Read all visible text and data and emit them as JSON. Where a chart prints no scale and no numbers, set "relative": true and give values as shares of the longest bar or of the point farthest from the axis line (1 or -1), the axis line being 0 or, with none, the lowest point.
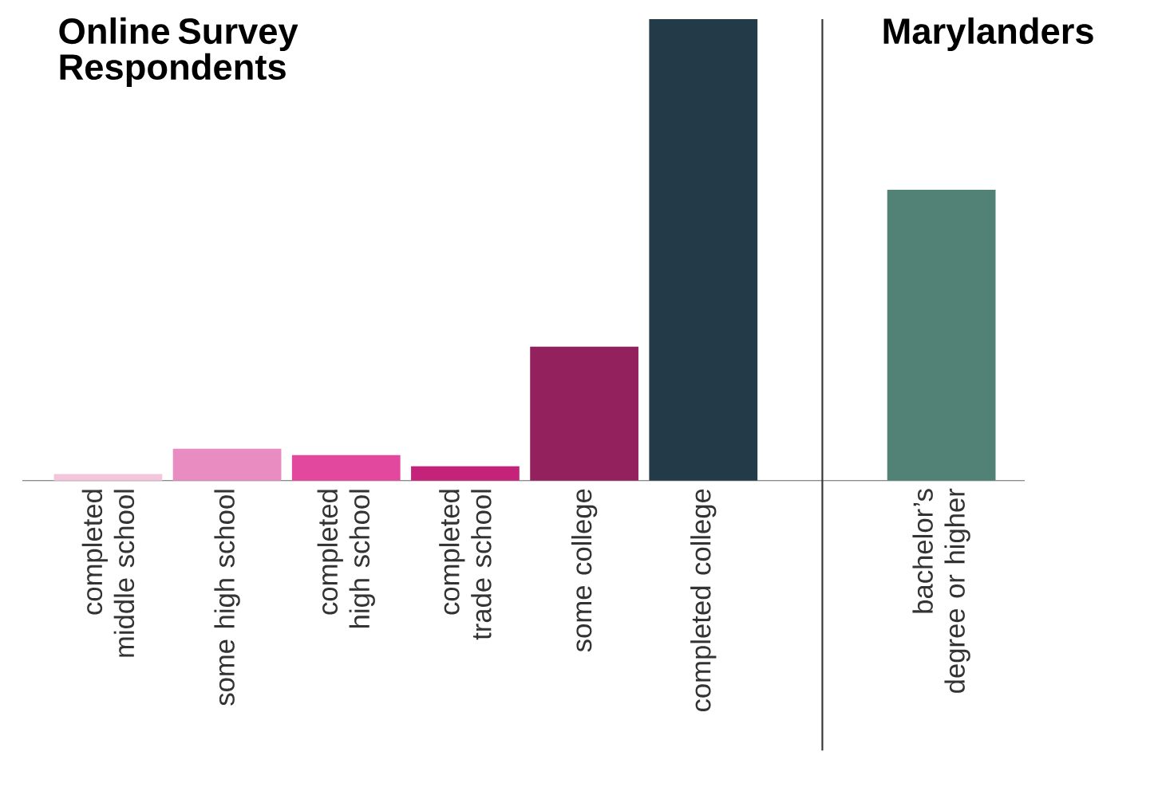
{
  "chart_data": {
    "type": "bar",
    "title": "Online Survey Respondents",
    "annotations": [
      "Marylanders"
    ],
    "categories": [
      "completed middle school",
      "some high school",
      "completed high school",
      "completed trade school",
      "some college",
      "completed college",
      null,
      "bachelor’s degree or higher"
    ],
    "values": [
      0.014,
      0.069,
      0.055,
      0.031,
      0.29,
      1,
      null,
      0.63
    ],
    "colors": [
      "#f4c6dc",
      "#e98cc2",
      "#e2489e",
      "#c52379",
      "#93215e",
      "#233b49",
      "#888888",
      "#528275"
    ],
    "relative": true
  }
}
